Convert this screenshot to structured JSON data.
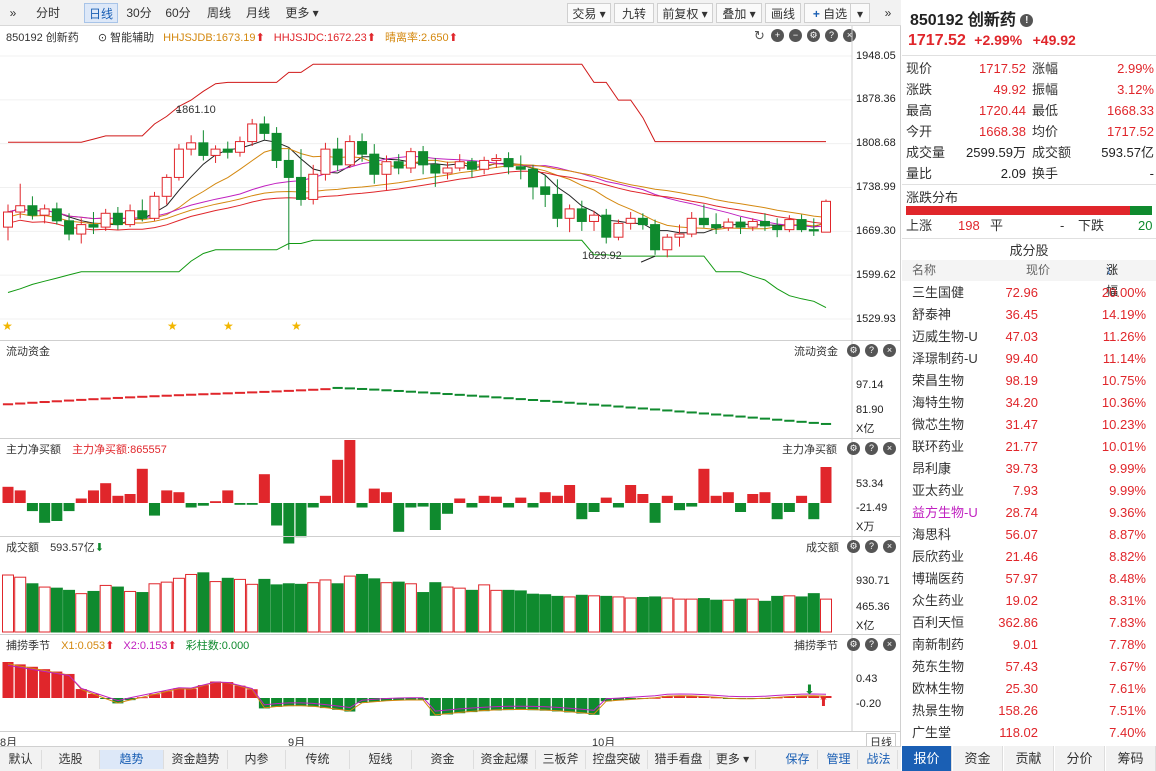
{
  "toolbar": {
    "left_items": [
      "分时",
      "日线",
      "30分",
      "60分",
      "周线",
      "月线",
      "更多"
    ],
    "active": "日线",
    "right_items": [
      "交易",
      "九转",
      "前复权",
      "叠加",
      "画线",
      "自选"
    ]
  },
  "main_chart": {
    "code_name": "850192  创新药",
    "assist": "智能辅助",
    "ind1": "HHJSJDB:1673.19",
    "ind2": "HHJSJDC:1672.23",
    "ind3": "晴离率:2.650",
    "price_ticks": [
      "1948.05",
      "1878.36",
      "1808.68",
      "1738.99",
      "1669.30",
      "1599.62",
      "1529.93"
    ],
    "hi_label": "1861.10",
    "lo_label": "1629.92"
  },
  "flow": {
    "title": "流动资金",
    "title_r": "流动资金",
    "ticks": [
      "97.14",
      "81.90",
      "X亿"
    ]
  },
  "net_buy": {
    "title": "主力净买额",
    "value": "主力净买额:865557",
    "title_r": "主力净买额",
    "ticks": [
      "53.34",
      "-21.49",
      "X万"
    ]
  },
  "volume": {
    "title": "成交额",
    "value": "593.57亿",
    "title_r": "成交额",
    "ticks": [
      "930.71",
      "465.36",
      "X亿"
    ]
  },
  "season": {
    "title": "捕捞季节",
    "x1": "X1:0.053",
    "x2": "X2:0.153",
    "bar": "彩柱数:0.000",
    "title_r": "捕捞季节",
    "ticks": [
      "0.43",
      "-0.20"
    ]
  },
  "xaxis": {
    "labels": [
      "8月",
      "9月",
      "10月"
    ],
    "right": "日线"
  },
  "bottom_tabs": [
    "默认",
    "选股",
    "趋势",
    "资金趋势",
    "内参",
    "传统",
    "短线",
    "资金",
    "资金起爆",
    "三板斧",
    "控盘突破",
    "猎手看盘",
    "更多"
  ],
  "bottom_right": [
    "保存",
    "管理",
    "战法"
  ],
  "bottom_active": "趋势",
  "quote": {
    "code": "850192",
    "name": "创新药",
    "price": "1717.52",
    "pct": "+2.99%",
    "chg": "+49.92",
    "rows": [
      [
        "现价",
        "1717.52",
        "涨幅",
        "2.99%"
      ],
      [
        "涨跌",
        "49.92",
        "振幅",
        "3.12%"
      ],
      [
        "最高",
        "1720.44",
        "最低",
        "1668.33"
      ],
      [
        "今开",
        "1668.38",
        "均价",
        "1717.52"
      ],
      [
        "成交量",
        "2599.59万",
        "成交额",
        "593.57亿"
      ],
      [
        "量比",
        "2.09",
        "换手",
        "-"
      ]
    ],
    "dist_title": "涨跌分布",
    "up_label": "上涨",
    "up": "198",
    "flat_label": "平",
    "flat": "-",
    "down_label": "下跌",
    "down": "20",
    "constituents_title": "成分股",
    "cols": [
      "名称",
      "现价",
      "涨幅"
    ],
    "stocks": [
      [
        "三生国健",
        "72.96",
        "20.00%"
      ],
      [
        "舒泰神",
        "36.45",
        "14.19%"
      ],
      [
        "迈威生物-U",
        "47.03",
        "11.26%"
      ],
      [
        "泽璟制药-U",
        "99.40",
        "11.14%"
      ],
      [
        "荣昌生物",
        "98.19",
        "10.75%"
      ],
      [
        "海特生物",
        "34.20",
        "10.36%"
      ],
      [
        "微芯生物",
        "31.47",
        "10.23%"
      ],
      [
        "联环药业",
        "21.77",
        "10.01%"
      ],
      [
        "昂利康",
        "39.73",
        "9.99%"
      ],
      [
        "亚太药业",
        "7.93",
        "9.99%"
      ],
      [
        "益方生物-U",
        "28.74",
        "9.36%"
      ],
      [
        "海思科",
        "56.07",
        "8.87%"
      ],
      [
        "辰欣药业",
        "21.46",
        "8.82%"
      ],
      [
        "博瑞医药",
        "57.97",
        "8.48%"
      ],
      [
        "众生药业",
        "19.02",
        "8.31%"
      ],
      [
        "百利天恒",
        "362.86",
        "7.83%"
      ],
      [
        "南新制药",
        "9.01",
        "7.78%"
      ],
      [
        "苑东生物",
        "57.43",
        "7.67%"
      ],
      [
        "欧林生物",
        "25.30",
        "7.61%"
      ],
      [
        "热景生物",
        "158.26",
        "7.51%"
      ],
      [
        "广生堂",
        "118.02",
        "7.40%"
      ]
    ],
    "tabs": [
      "报价",
      "资金",
      "贡献",
      "分价",
      "筹码"
    ]
  },
  "colors": {
    "up": "#e0262b",
    "down": "#0f8a2e",
    "accent": "#1a5fb4"
  },
  "candles": [
    [
      1676,
      1712,
      1655,
      1700
    ],
    [
      1700,
      1745,
      1690,
      1710
    ],
    [
      1710,
      1725,
      1688,
      1695
    ],
    [
      1695,
      1712,
      1682,
      1705
    ],
    [
      1705,
      1715,
      1680,
      1686
    ],
    [
      1686,
      1698,
      1655,
      1665
    ],
    [
      1665,
      1690,
      1650,
      1680
    ],
    [
      1680,
      1700,
      1665,
      1676
    ],
    [
      1676,
      1705,
      1670,
      1698
    ],
    [
      1698,
      1708,
      1672,
      1680
    ],
    [
      1680,
      1712,
      1676,
      1702
    ],
    [
      1702,
      1720,
      1685,
      1690
    ],
    [
      1690,
      1732,
      1686,
      1725
    ],
    [
      1725,
      1760,
      1712,
      1755
    ],
    [
      1755,
      1808,
      1750,
      1800
    ],
    [
      1800,
      1822,
      1790,
      1810
    ],
    [
      1810,
      1830,
      1782,
      1790
    ],
    [
      1790,
      1806,
      1778,
      1800
    ],
    [
      1800,
      1812,
      1785,
      1795
    ],
    [
      1795,
      1820,
      1788,
      1812
    ],
    [
      1812,
      1848,
      1805,
      1840
    ],
    [
      1840,
      1852,
      1815,
      1825
    ],
    [
      1825,
      1835,
      1770,
      1782
    ],
    [
      1782,
      1800,
      1640,
      1755
    ],
    [
      1755,
      1800,
      1710,
      1720
    ],
    [
      1720,
      1775,
      1712,
      1760
    ],
    [
      1760,
      1810,
      1750,
      1800
    ],
    [
      1800,
      1818,
      1765,
      1775
    ],
    [
      1775,
      1822,
      1770,
      1812
    ],
    [
      1812,
      1825,
      1780,
      1792
    ],
    [
      1792,
      1808,
      1745,
      1760
    ],
    [
      1760,
      1790,
      1735,
      1780
    ],
    [
      1780,
      1792,
      1760,
      1770
    ],
    [
      1770,
      1802,
      1762,
      1796
    ],
    [
      1796,
      1805,
      1760,
      1775
    ],
    [
      1775,
      1786,
      1740,
      1762
    ],
    [
      1762,
      1780,
      1752,
      1770
    ],
    [
      1770,
      1792,
      1765,
      1780
    ],
    [
      1780,
      1786,
      1755,
      1768
    ],
    [
      1768,
      1788,
      1760,
      1782
    ],
    [
      1782,
      1792,
      1770,
      1785
    ],
    [
      1785,
      1795,
      1760,
      1772
    ],
    [
      1772,
      1790,
      1752,
      1768
    ],
    [
      1768,
      1775,
      1720,
      1740
    ],
    [
      1740,
      1758,
      1708,
      1728
    ],
    [
      1728,
      1752,
      1676,
      1690
    ],
    [
      1690,
      1712,
      1668,
      1705
    ],
    [
      1705,
      1718,
      1670,
      1685
    ],
    [
      1685,
      1702,
      1670,
      1695
    ],
    [
      1695,
      1705,
      1650,
      1660
    ],
    [
      1660,
      1688,
      1655,
      1682
    ],
    [
      1682,
      1700,
      1672,
      1690
    ],
    [
      1690,
      1698,
      1672,
      1680
    ],
    [
      1680,
      1688,
      1632,
      1640
    ],
    [
      1640,
      1665,
      1628,
      1660
    ],
    [
      1660,
      1680,
      1645,
      1665
    ],
    [
      1665,
      1700,
      1660,
      1690
    ],
    [
      1690,
      1712,
      1675,
      1680
    ],
    [
      1680,
      1698,
      1665,
      1675
    ],
    [
      1675,
      1690,
      1670,
      1684
    ],
    [
      1684,
      1692,
      1665,
      1676
    ],
    [
      1676,
      1690,
      1670,
      1685
    ],
    [
      1685,
      1698,
      1670,
      1678
    ],
    [
      1678,
      1690,
      1660,
      1672
    ],
    [
      1672,
      1695,
      1668,
      1688
    ],
    [
      1688,
      1696,
      1668,
      1672
    ],
    [
      1672,
      1690,
      1662,
      1670
    ],
    [
      1668,
      1720,
      1668,
      1717
    ]
  ],
  "bands": {
    "upper": [
      1811,
      1811,
      1811,
      1811,
      1811,
      1811,
      1811,
      1816,
      1821,
      1821,
      1821,
      1821,
      1840,
      1852,
      1868,
      1878,
      1892,
      1904,
      1906,
      1906,
      1906,
      1906,
      1906,
      1922,
      1922,
      1935,
      1935,
      1935,
      1935,
      1935,
      1935,
      1935,
      1935,
      1935,
      1935,
      1935,
      1935,
      1935,
      1935,
      1935,
      1935,
      1935,
      1935,
      1935,
      1935,
      1935,
      1935,
      1935,
      1906,
      1906,
      1878,
      1878,
      1850,
      1812,
      1812,
      1812,
      1812,
      1812,
      1812,
      1812,
      1812,
      1812,
      1812,
      1812,
      1812,
      1812,
      1812,
      1812
    ],
    "lower": [
      1572,
      1578,
      1585,
      1590,
      1595,
      1600,
      1605,
      1605,
      1605,
      1605,
      1605,
      1605,
      1605,
      1605,
      1605,
      1622,
      1634,
      1640,
      1640,
      1640,
      1640,
      1640,
      1640,
      1650,
      1650,
      1655,
      1655,
      1655,
      1655,
      1655,
      1655,
      1655,
      1655,
      1655,
      1655,
      1655,
      1655,
      1655,
      1655,
      1655,
      1655,
      1655,
      1655,
      1655,
      1655,
      1655,
      1655,
      1655,
      1632,
      1632,
      1630,
      1630,
      1630,
      1630,
      1630,
      1630,
      1630,
      1630,
      1605,
      1605,
      1605,
      1598,
      1592,
      1578,
      1567,
      1562,
      1558,
      1548
    ]
  },
  "net_buy_values": [
    18,
    14,
    -9,
    -22,
    -20,
    -9,
    5,
    14,
    22,
    8,
    10,
    38,
    -14,
    14,
    12,
    -5,
    -3,
    2,
    14,
    -2,
    -2,
    32,
    -25,
    -45,
    -38,
    -5,
    8,
    48,
    70,
    -5,
    16,
    12,
    -32,
    -5,
    -4,
    -30,
    -12,
    5,
    -5,
    8,
    7,
    -5,
    6,
    -5,
    12,
    8,
    20,
    -18,
    -10,
    6,
    -5,
    20,
    10,
    -22,
    8,
    -8,
    -4,
    38,
    8,
    12,
    -10,
    10,
    12,
    -18,
    -10,
    8,
    -18,
    40
  ],
  "vol_values": [
    1040,
    1000,
    880,
    820,
    800,
    760,
    700,
    740,
    850,
    820,
    740,
    720,
    880,
    910,
    980,
    1050,
    1080,
    920,
    980,
    960,
    870,
    960,
    860,
    880,
    870,
    900,
    950,
    880,
    1020,
    1050,
    970,
    900,
    910,
    880,
    720,
    900,
    820,
    800,
    760,
    860,
    760,
    760,
    750,
    690,
    680,
    650,
    640,
    670,
    660,
    650,
    640,
    620,
    630,
    640,
    620,
    600,
    600,
    610,
    580,
    580,
    600,
    600,
    560,
    650,
    660,
    640,
    700,
    600
  ]
}
